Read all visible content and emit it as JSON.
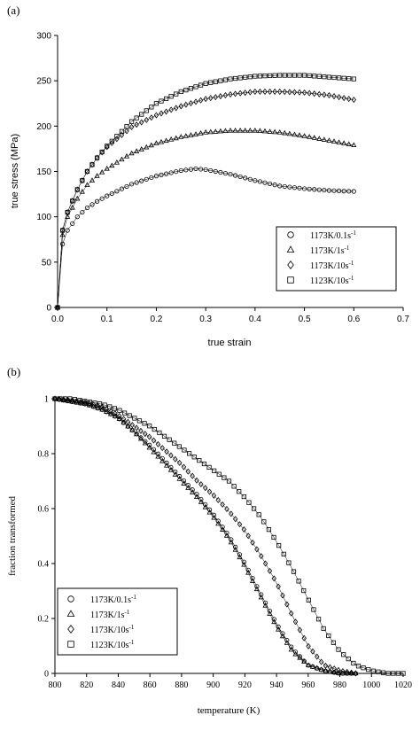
{
  "colors": {
    "ink": "#000000",
    "background": "#ffffff"
  },
  "chart_data": [
    {
      "type": "scatter",
      "panel_label": "(a)",
      "title": "",
      "xlabel": "true strain",
      "ylabel": "true stress (MPa)",
      "xlim": [
        0,
        0.7
      ],
      "ylim": [
        0,
        300
      ],
      "xticks": [
        "0.0",
        "0.1",
        "0.2",
        "0.3",
        "0.4",
        "0.5",
        "0.6",
        "0.7"
      ],
      "yticks": [
        "0",
        "50",
        "100",
        "150",
        "200",
        "250",
        "300"
      ],
      "grid": false,
      "legend_position": "lower-right",
      "series": [
        {
          "name": "1173K/0.1s",
          "superscript": "-1",
          "marker": "circle",
          "x": [
            0,
            0.01,
            0.02,
            0.04,
            0.06,
            0.08,
            0.1,
            0.15,
            0.2,
            0.25,
            0.28,
            0.3,
            0.35,
            0.4,
            0.45,
            0.5,
            0.55,
            0.6
          ],
          "y": [
            0,
            70,
            85,
            100,
            110,
            117,
            123,
            136,
            145,
            151,
            153,
            152,
            147,
            140,
            134,
            131,
            129,
            128
          ]
        },
        {
          "name": "1173K/1s",
          "superscript": "-1",
          "marker": "triangle",
          "x": [
            0,
            0.01,
            0.02,
            0.04,
            0.06,
            0.08,
            0.1,
            0.15,
            0.2,
            0.25,
            0.3,
            0.35,
            0.4,
            0.45,
            0.5,
            0.55,
            0.6
          ],
          "y": [
            0,
            80,
            100,
            120,
            135,
            145,
            153,
            170,
            181,
            188,
            193,
            195,
            195,
            193,
            189,
            184,
            179
          ]
        },
        {
          "name": "1173K/10s",
          "superscript": "-1",
          "marker": "diamond",
          "x": [
            0,
            0.01,
            0.02,
            0.04,
            0.06,
            0.08,
            0.1,
            0.15,
            0.2,
            0.25,
            0.3,
            0.35,
            0.4,
            0.45,
            0.5,
            0.55,
            0.6
          ],
          "y": [
            0,
            85,
            105,
            130,
            150,
            165,
            177,
            199,
            212,
            222,
            230,
            235,
            238,
            238,
            237,
            234,
            229
          ]
        },
        {
          "name": "1123K/10s",
          "superscript": "-1",
          "marker": "square",
          "x": [
            0,
            0.01,
            0.02,
            0.04,
            0.06,
            0.08,
            0.1,
            0.15,
            0.2,
            0.25,
            0.3,
            0.35,
            0.4,
            0.45,
            0.5,
            0.55,
            0.6
          ],
          "y": [
            0,
            85,
            105,
            130,
            150,
            165,
            178,
            205,
            225,
            238,
            247,
            252,
            255,
            256,
            256,
            254,
            252
          ]
        }
      ]
    },
    {
      "type": "scatter",
      "panel_label": "(b)",
      "title": "",
      "xlabel": "temperature (K)",
      "ylabel": "fraction transformed",
      "xlim": [
        800,
        1020
      ],
      "ylim": [
        0,
        1
      ],
      "xticks": [
        "800",
        "820",
        "840",
        "860",
        "880",
        "900",
        "920",
        "940",
        "960",
        "980",
        "1000",
        "1020"
      ],
      "yticks": [
        "0",
        "0.2",
        "0.4",
        "0.6",
        "0.8",
        "1"
      ],
      "grid": false,
      "legend_position": "lower-left",
      "series": [
        {
          "name": "1173K/0.1s",
          "superscript": "-1",
          "marker": "circle",
          "x": [
            800,
            810,
            820,
            830,
            840,
            850,
            860,
            870,
            880,
            890,
            900,
            910,
            920,
            930,
            940,
            950,
            960,
            970,
            980,
            990
          ],
          "y": [
            1.0,
            0.99,
            0.98,
            0.96,
            0.93,
            0.88,
            0.83,
            0.77,
            0.71,
            0.65,
            0.58,
            0.5,
            0.4,
            0.29,
            0.18,
            0.09,
            0.03,
            0.01,
            0,
            0
          ]
        },
        {
          "name": "1173K/1s",
          "superscript": "-1",
          "marker": "triangle",
          "x": [
            800,
            810,
            820,
            830,
            840,
            850,
            860,
            870,
            880,
            890,
            900,
            910,
            920,
            930,
            940,
            950,
            960,
            970,
            980,
            990
          ],
          "y": [
            1.0,
            0.99,
            0.98,
            0.96,
            0.93,
            0.88,
            0.82,
            0.76,
            0.7,
            0.64,
            0.57,
            0.49,
            0.39,
            0.28,
            0.17,
            0.08,
            0.03,
            0.01,
            0,
            0
          ]
        },
        {
          "name": "1173K/10s",
          "superscript": "-1",
          "marker": "diamond",
          "x": [
            800,
            810,
            820,
            830,
            840,
            850,
            860,
            870,
            880,
            890,
            900,
            910,
            920,
            930,
            940,
            950,
            960,
            970,
            980,
            990
          ],
          "y": [
            1.0,
            0.995,
            0.985,
            0.97,
            0.94,
            0.9,
            0.86,
            0.81,
            0.76,
            0.7,
            0.65,
            0.59,
            0.52,
            0.43,
            0.33,
            0.21,
            0.1,
            0.03,
            0.01,
            0
          ]
        },
        {
          "name": "1123K/10s",
          "superscript": "-1",
          "marker": "square",
          "x": [
            800,
            810,
            820,
            830,
            840,
            850,
            860,
            870,
            880,
            890,
            900,
            910,
            920,
            930,
            940,
            950,
            960,
            970,
            980,
            990,
            1000,
            1010,
            1020
          ],
          "y": [
            1.0,
            1.0,
            0.99,
            0.98,
            0.96,
            0.93,
            0.9,
            0.86,
            0.82,
            0.78,
            0.74,
            0.7,
            0.64,
            0.57,
            0.48,
            0.38,
            0.27,
            0.16,
            0.08,
            0.03,
            0.01,
            0,
            0
          ]
        }
      ]
    }
  ]
}
